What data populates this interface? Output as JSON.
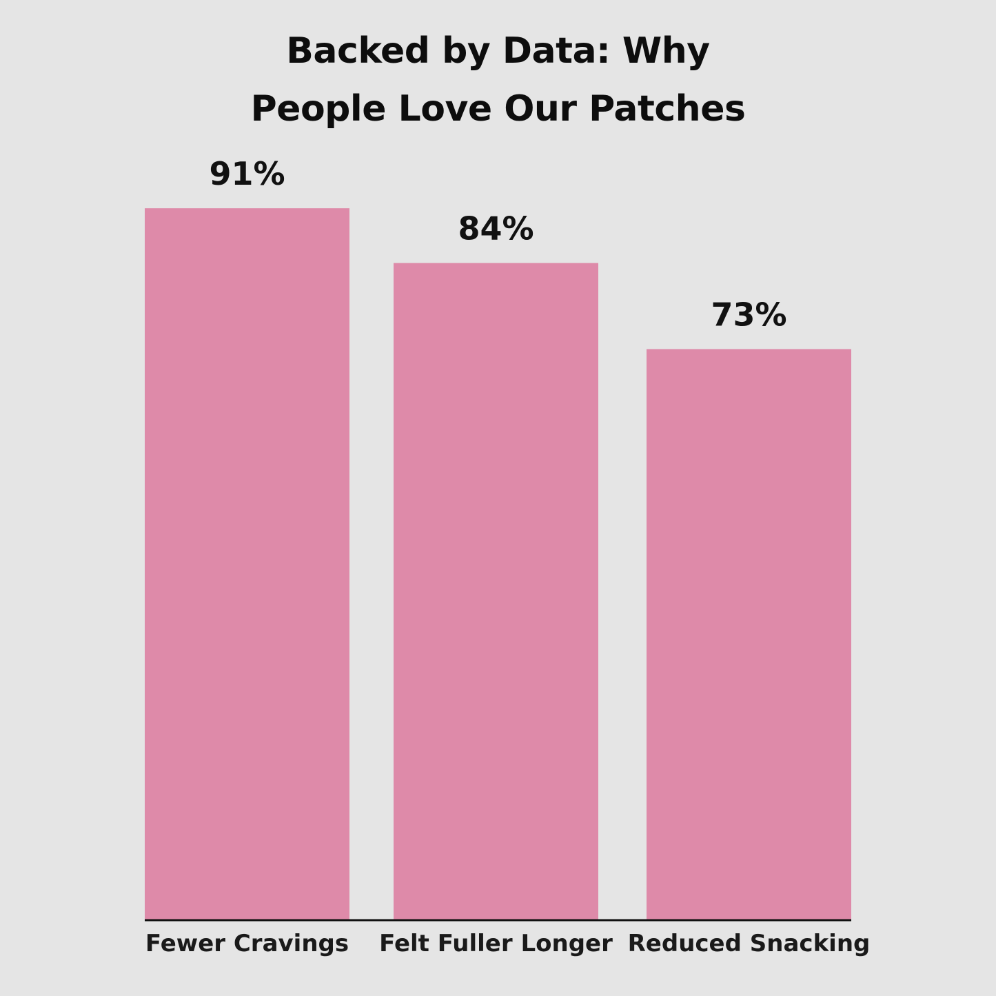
{
  "title": {
    "line1": "Backed by Data: Why",
    "line2": "People Love Our Patches"
  },
  "colors": {
    "background": "#e5e5e5",
    "bar": "#de8aa9",
    "axis": "#111111"
  },
  "chart_data": {
    "type": "bar",
    "title": "Backed by Data: Why People Love Our Patches",
    "categories": [
      "Fewer Cravings",
      "Felt Fuller Longer",
      "Reduced Snacking"
    ],
    "values": [
      91,
      84,
      73
    ],
    "value_labels": [
      "91%",
      "84%",
      "73%"
    ],
    "xlabel": "",
    "ylabel": "",
    "ylim": [
      0,
      100
    ],
    "grid": false,
    "legend": "none"
  }
}
